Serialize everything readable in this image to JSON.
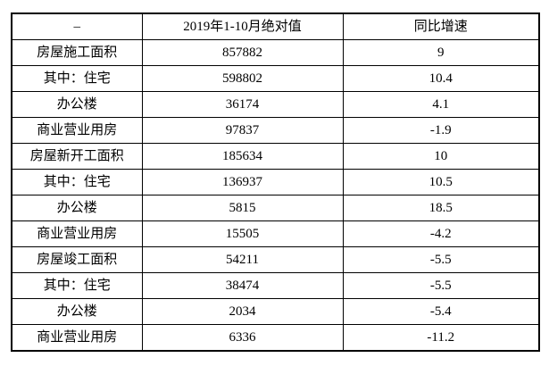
{
  "table": {
    "headers": [
      "–",
      "2019年1-10月绝对值",
      "同比增速"
    ],
    "rows": [
      {
        "label": "房屋施工面积",
        "value": "857882",
        "growth": "9"
      },
      {
        "label": "其中：住宅",
        "value": "598802",
        "growth": "10.4"
      },
      {
        "label": "办公楼",
        "value": "36174",
        "growth": "4.1"
      },
      {
        "label": "商业营业用房",
        "value": "97837",
        "growth": "-1.9"
      },
      {
        "label": "房屋新开工面积",
        "value": "185634",
        "growth": "10"
      },
      {
        "label": "其中：住宅",
        "value": "136937",
        "growth": "10.5"
      },
      {
        "label": "办公楼",
        "value": "5815",
        "growth": "18.5"
      },
      {
        "label": "商业营业用房",
        "value": "15505",
        "growth": "-4.2"
      },
      {
        "label": "房屋竣工面积",
        "value": "54211",
        "growth": "-5.5"
      },
      {
        "label": "其中：住宅",
        "value": "38474",
        "growth": "-5.5"
      },
      {
        "label": "办公楼",
        "value": "2034",
        "growth": "-5.4"
      },
      {
        "label": "商业营业用房",
        "value": "6336",
        "growth": "-11.2"
      }
    ]
  },
  "chart_data": {
    "type": "table",
    "title": "",
    "columns": [
      "–",
      "2019年1-10月绝对值",
      "同比增速"
    ],
    "rows": [
      [
        "房屋施工面积",
        857882,
        9
      ],
      [
        "其中：住宅",
        598802,
        10.4
      ],
      [
        "办公楼",
        36174,
        4.1
      ],
      [
        "商业营业用房",
        97837,
        -1.9
      ],
      [
        "房屋新开工面积",
        185634,
        10
      ],
      [
        "其中：住宅",
        136937,
        10.5
      ],
      [
        "办公楼",
        5815,
        18.5
      ],
      [
        "商业营业用房",
        15505,
        -4.2
      ],
      [
        "房屋竣工面积",
        54211,
        -5.5
      ],
      [
        "其中：住宅",
        38474,
        -5.5
      ],
      [
        "办公楼",
        2034,
        -5.4
      ],
      [
        "商业营业用房",
        6336,
        -11.2
      ]
    ],
    "layout": {
      "grid": true,
      "border_color": "#000000",
      "background": "#ffffff",
      "text_align": "center"
    }
  },
  "colors": {
    "border": "#000000",
    "background": "#ffffff",
    "text": "#000000"
  }
}
